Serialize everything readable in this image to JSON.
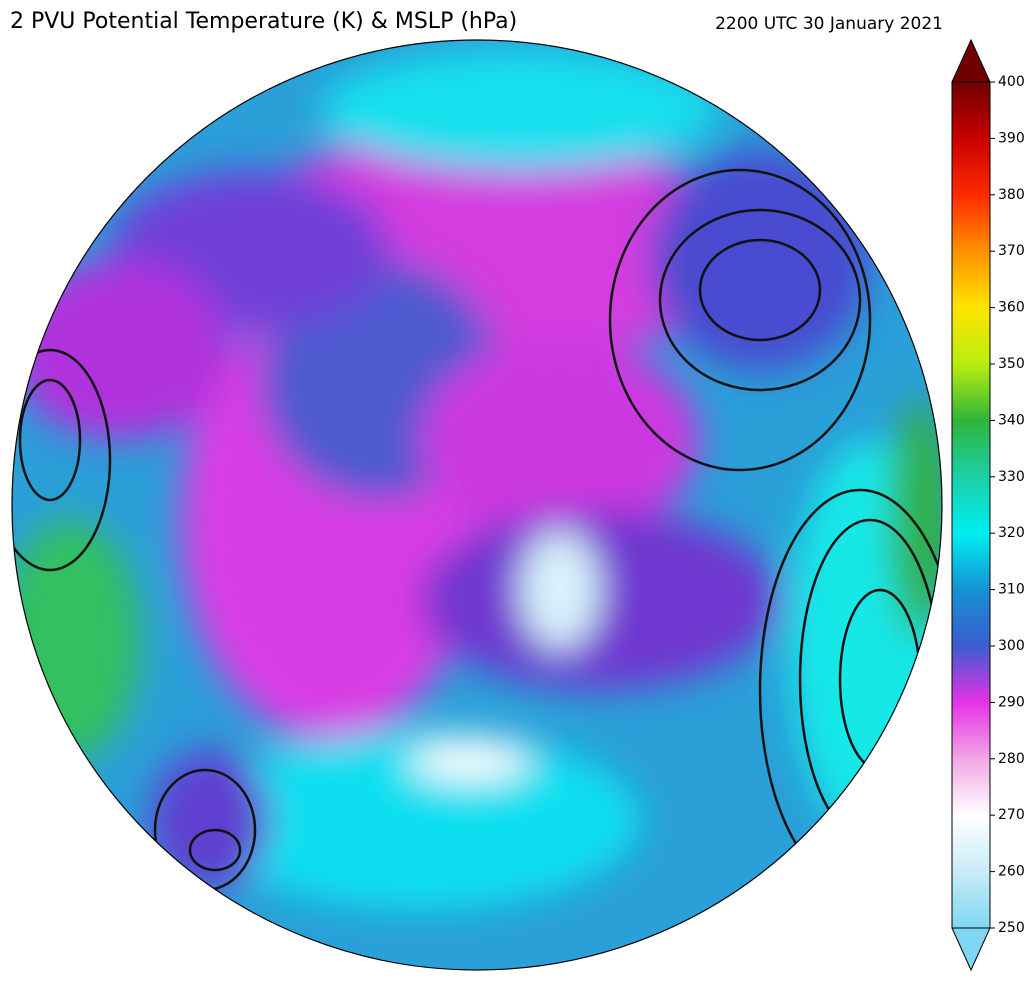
{
  "title": "2 PVU Potential Temperature (K) & MSLP (hPa)",
  "timestamp": "2200 UTC 30 January 2021",
  "colorbar": {
    "lim": [
      250,
      400
    ],
    "ticks": [
      250,
      260,
      270,
      280,
      290,
      300,
      310,
      320,
      330,
      340,
      350,
      360,
      370,
      380,
      390,
      400
    ],
    "colors": [
      "#7fd6f2",
      "#c8ecf8",
      "#ffffff",
      "#f2a6e6",
      "#e632e6",
      "#3c5cd0",
      "#1592d2",
      "#00eef0",
      "#1ccfa8",
      "#2fb43a",
      "#b8ee10",
      "#ffe400",
      "#ff9000",
      "#ff2a00",
      "#c80000",
      "#700000"
    ]
  }
}
